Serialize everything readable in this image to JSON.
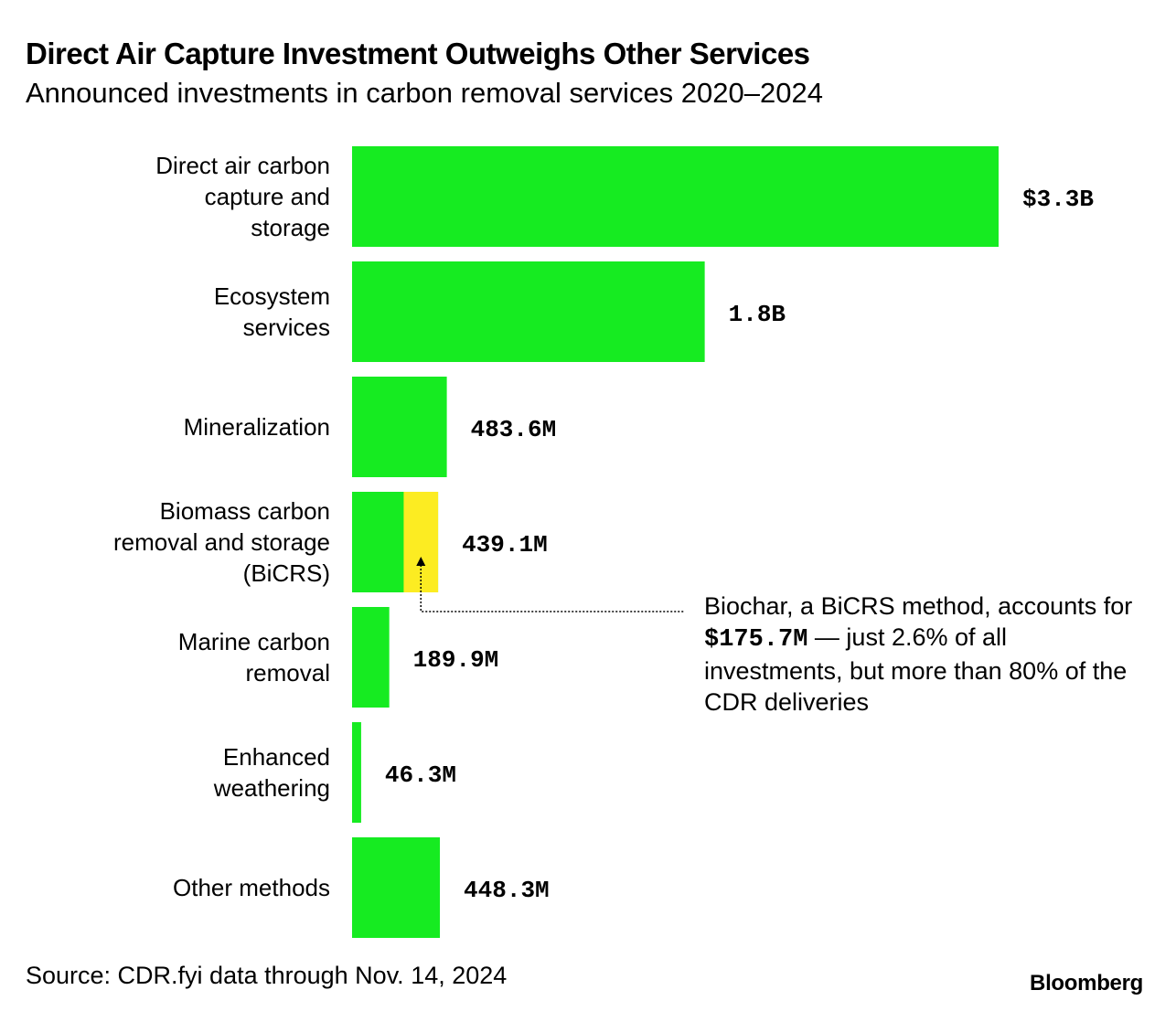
{
  "header": {
    "title": "Direct Air Capture Investment Outweighs Other Services",
    "subtitle": "Announced investments in carbon removal services 2020–2024"
  },
  "footer": {
    "source": "Source: CDR.fyi data through Nov. 14, 2024",
    "logo": "Bloomberg"
  },
  "annotation": {
    "line1": "Biochar, a BiCRS method, accounts for ",
    "value": "$175.7M",
    "line2": " — just 2.6% of all investments, but more than 80% of the CDR deliveries"
  },
  "colors": {
    "bar": "#16eb21",
    "highlight": "#fcec22",
    "text": "#000000"
  },
  "chart_data": {
    "type": "bar",
    "orientation": "horizontal",
    "title": "Direct Air Capture Investment Outweighs Other Services",
    "subtitle": "Announced investments in carbon removal services 2020–2024",
    "unit": "USD millions",
    "xlim": [
      0,
      3300
    ],
    "categories": [
      [
        "Direct air carbon",
        "capture and",
        "storage"
      ],
      [
        "Ecosystem",
        "services"
      ],
      [
        "Mineralization"
      ],
      [
        "Biomass carbon",
        "removal and storage",
        "(BiCRS)"
      ],
      [
        "Marine carbon",
        "removal"
      ],
      [
        "Enhanced",
        "weathering"
      ],
      [
        "Other methods"
      ]
    ],
    "values": [
      3300,
      1800,
      483.6,
      439.1,
      189.9,
      46.3,
      448.3
    ],
    "labels": [
      "$3.3B",
      "1.8B",
      "483.6M",
      "439.1M",
      "189.9M",
      "46.3M",
      "448.3M"
    ],
    "highlight": {
      "category_index": 3,
      "name": "Biochar",
      "value": 175.7
    }
  }
}
